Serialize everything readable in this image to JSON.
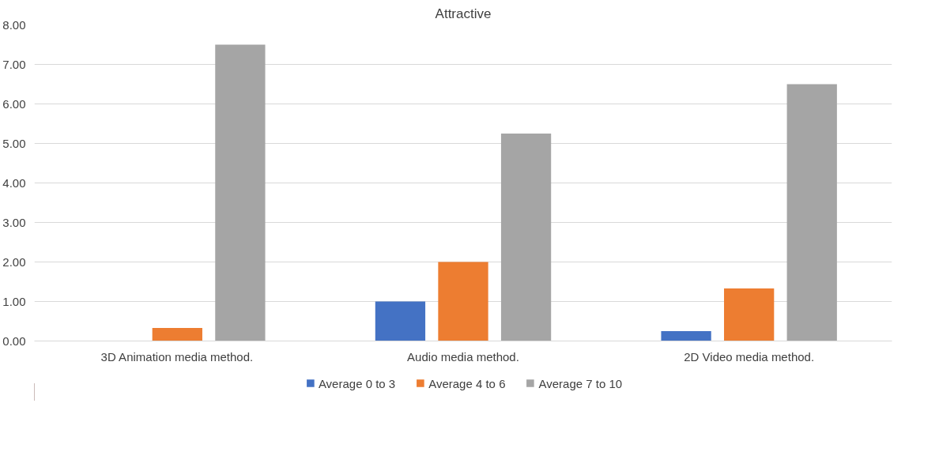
{
  "chart_data": {
    "type": "bar",
    "title": "Attractive",
    "categories": [
      "3D Animation media method.",
      "Audio media method.",
      "2D Video media method."
    ],
    "series": [
      {
        "name": "Average 0 to 3",
        "color": "#4472c4",
        "values": [
          0,
          1.0,
          0.25
        ]
      },
      {
        "name": "Average 4 to 6",
        "color": "#ed7d31",
        "values": [
          0.33,
          2.0,
          1.33
        ]
      },
      {
        "name": "Average 7 to 10",
        "color": "#a5a5a5",
        "values": [
          7.5,
          5.25,
          6.5
        ]
      }
    ],
    "ylim": [
      0,
      8
    ],
    "yticks": [
      {
        "value": 0,
        "label": "0.00"
      },
      {
        "value": 1,
        "label": "1.00"
      },
      {
        "value": 2,
        "label": "2.00"
      },
      {
        "value": 3,
        "label": "3.00"
      },
      {
        "value": 4,
        "label": "4.00"
      },
      {
        "value": 5,
        "label": "5.00"
      },
      {
        "value": 6,
        "label": "6.00"
      },
      {
        "value": 7,
        "label": "7.00"
      },
      {
        "value": 8,
        "label": "8.00"
      }
    ],
    "grid": "y",
    "legend": "bottom"
  }
}
